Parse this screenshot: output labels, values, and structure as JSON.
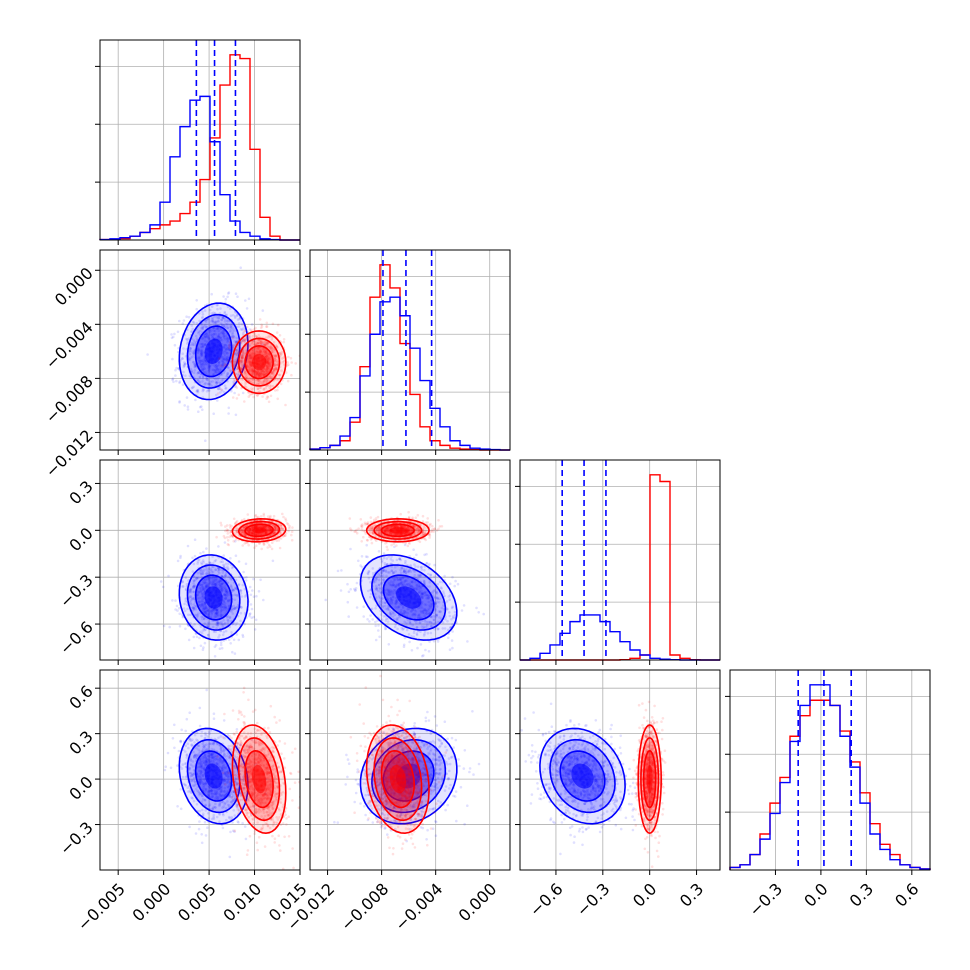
{
  "colors": {
    "series_a": "#0000ff",
    "series_b": "#ff0000",
    "grid": "#b0b0b0",
    "axes": "#000000"
  },
  "chart_data": {
    "type": "corner",
    "title": "",
    "grid": true,
    "legend": "none",
    "series": [
      {
        "color": "#0000ff",
        "means": [
          0.0055,
          -0.006,
          -0.43,
          0.02
        ],
        "sds": [
          0.0018,
          0.0017,
          0.13,
          0.15
        ]
      },
      {
        "color": "#ff0000",
        "means": [
          0.0105,
          -0.0068,
          0.0,
          0.0
        ],
        "sds": [
          0.0014,
          0.0011,
          0.035,
          0.17
        ]
      }
    ],
    "quantile_lines": {
      "color": "#0000ff",
      "style": "dashed",
      "values": [
        [
          0.0036,
          0.0056,
          0.0079
        ],
        [
          -0.0079,
          -0.0062,
          -0.0043
        ],
        [
          -0.56,
          -0.42,
          -0.28
        ],
        [
          -0.15,
          0.02,
          0.2
        ]
      ]
    },
    "variables": [
      {
        "range": [
          -0.007,
          0.015
        ],
        "ticks": [
          -0.005,
          0.0,
          0.005,
          0.01,
          0.015
        ],
        "tick_labels": [
          "−0.005",
          "0.000",
          "0.005",
          "0.010",
          "0.015"
        ]
      },
      {
        "range": [
          -0.0133,
          0.0015
        ],
        "ticks": [
          -0.012,
          -0.008,
          -0.004,
          0.0
        ],
        "tick_labels": [
          "−0.012",
          "−0.008",
          "−0.004",
          "0.000"
        ]
      },
      {
        "range": [
          -0.83,
          0.45
        ],
        "ticks": [
          -0.6,
          -0.3,
          0.0,
          0.3
        ],
        "tick_labels": [
          "−0.6",
          "−0.3",
          "0.0",
          "0.3"
        ]
      },
      {
        "range": [
          -0.6,
          0.72
        ],
        "ticks": [
          -0.3,
          0.0,
          0.3,
          0.6
        ],
        "tick_labels": [
          "−0.3",
          "0.0",
          "0.3",
          "0.6"
        ]
      }
    ],
    "histograms": [
      {
        "bins": 20,
        "series_a": [
          0.1,
          0.3,
          0.6,
          1,
          2,
          4,
          10,
          22,
          30,
          37,
          38,
          26,
          12,
          5,
          2,
          1,
          0.3,
          0.1,
          0,
          0
        ],
        "series_b": [
          0.1,
          0.2,
          0.4,
          1,
          2,
          3,
          4,
          5,
          7,
          10,
          16,
          27,
          41,
          49,
          48,
          24,
          6,
          1,
          0,
          0
        ]
      },
      {
        "bins": 20,
        "series_a": [
          0.2,
          0.5,
          1,
          3,
          7,
          16,
          25,
          32,
          33,
          29,
          22,
          15,
          9,
          5,
          2,
          1,
          0.4,
          0.2,
          0.1,
          0
        ],
        "series_b": [
          0.2,
          0.5,
          1,
          2,
          6,
          18,
          33,
          40,
          35,
          23,
          12,
          5,
          2,
          1,
          0.4,
          0.2,
          0.1,
          0,
          0,
          0
        ]
      },
      {
        "bins": 20,
        "series_a": [
          0,
          1,
          4,
          9,
          16,
          23,
          27,
          27,
          23,
          17,
          11,
          6,
          3,
          1,
          0.5,
          0.2,
          0,
          0,
          0,
          0
        ],
        "series_b": [
          0,
          0,
          0,
          0,
          0,
          0,
          0,
          0,
          0,
          0,
          0.2,
          1,
          3,
          111,
          107,
          3,
          1,
          0.2,
          0,
          0
        ]
      },
      {
        "bins": 20,
        "series_a": [
          0.5,
          1,
          3,
          6,
          11,
          17,
          25,
          32,
          36,
          36,
          32,
          26,
          20,
          13,
          7,
          4,
          2,
          1,
          0.5,
          0.2
        ],
        "series_b": [
          0.5,
          1,
          3,
          7,
          13,
          18,
          26,
          30,
          33,
          33,
          32,
          27,
          21,
          15,
          9,
          5,
          3,
          1,
          0.5,
          0.2
        ]
      }
    ]
  }
}
